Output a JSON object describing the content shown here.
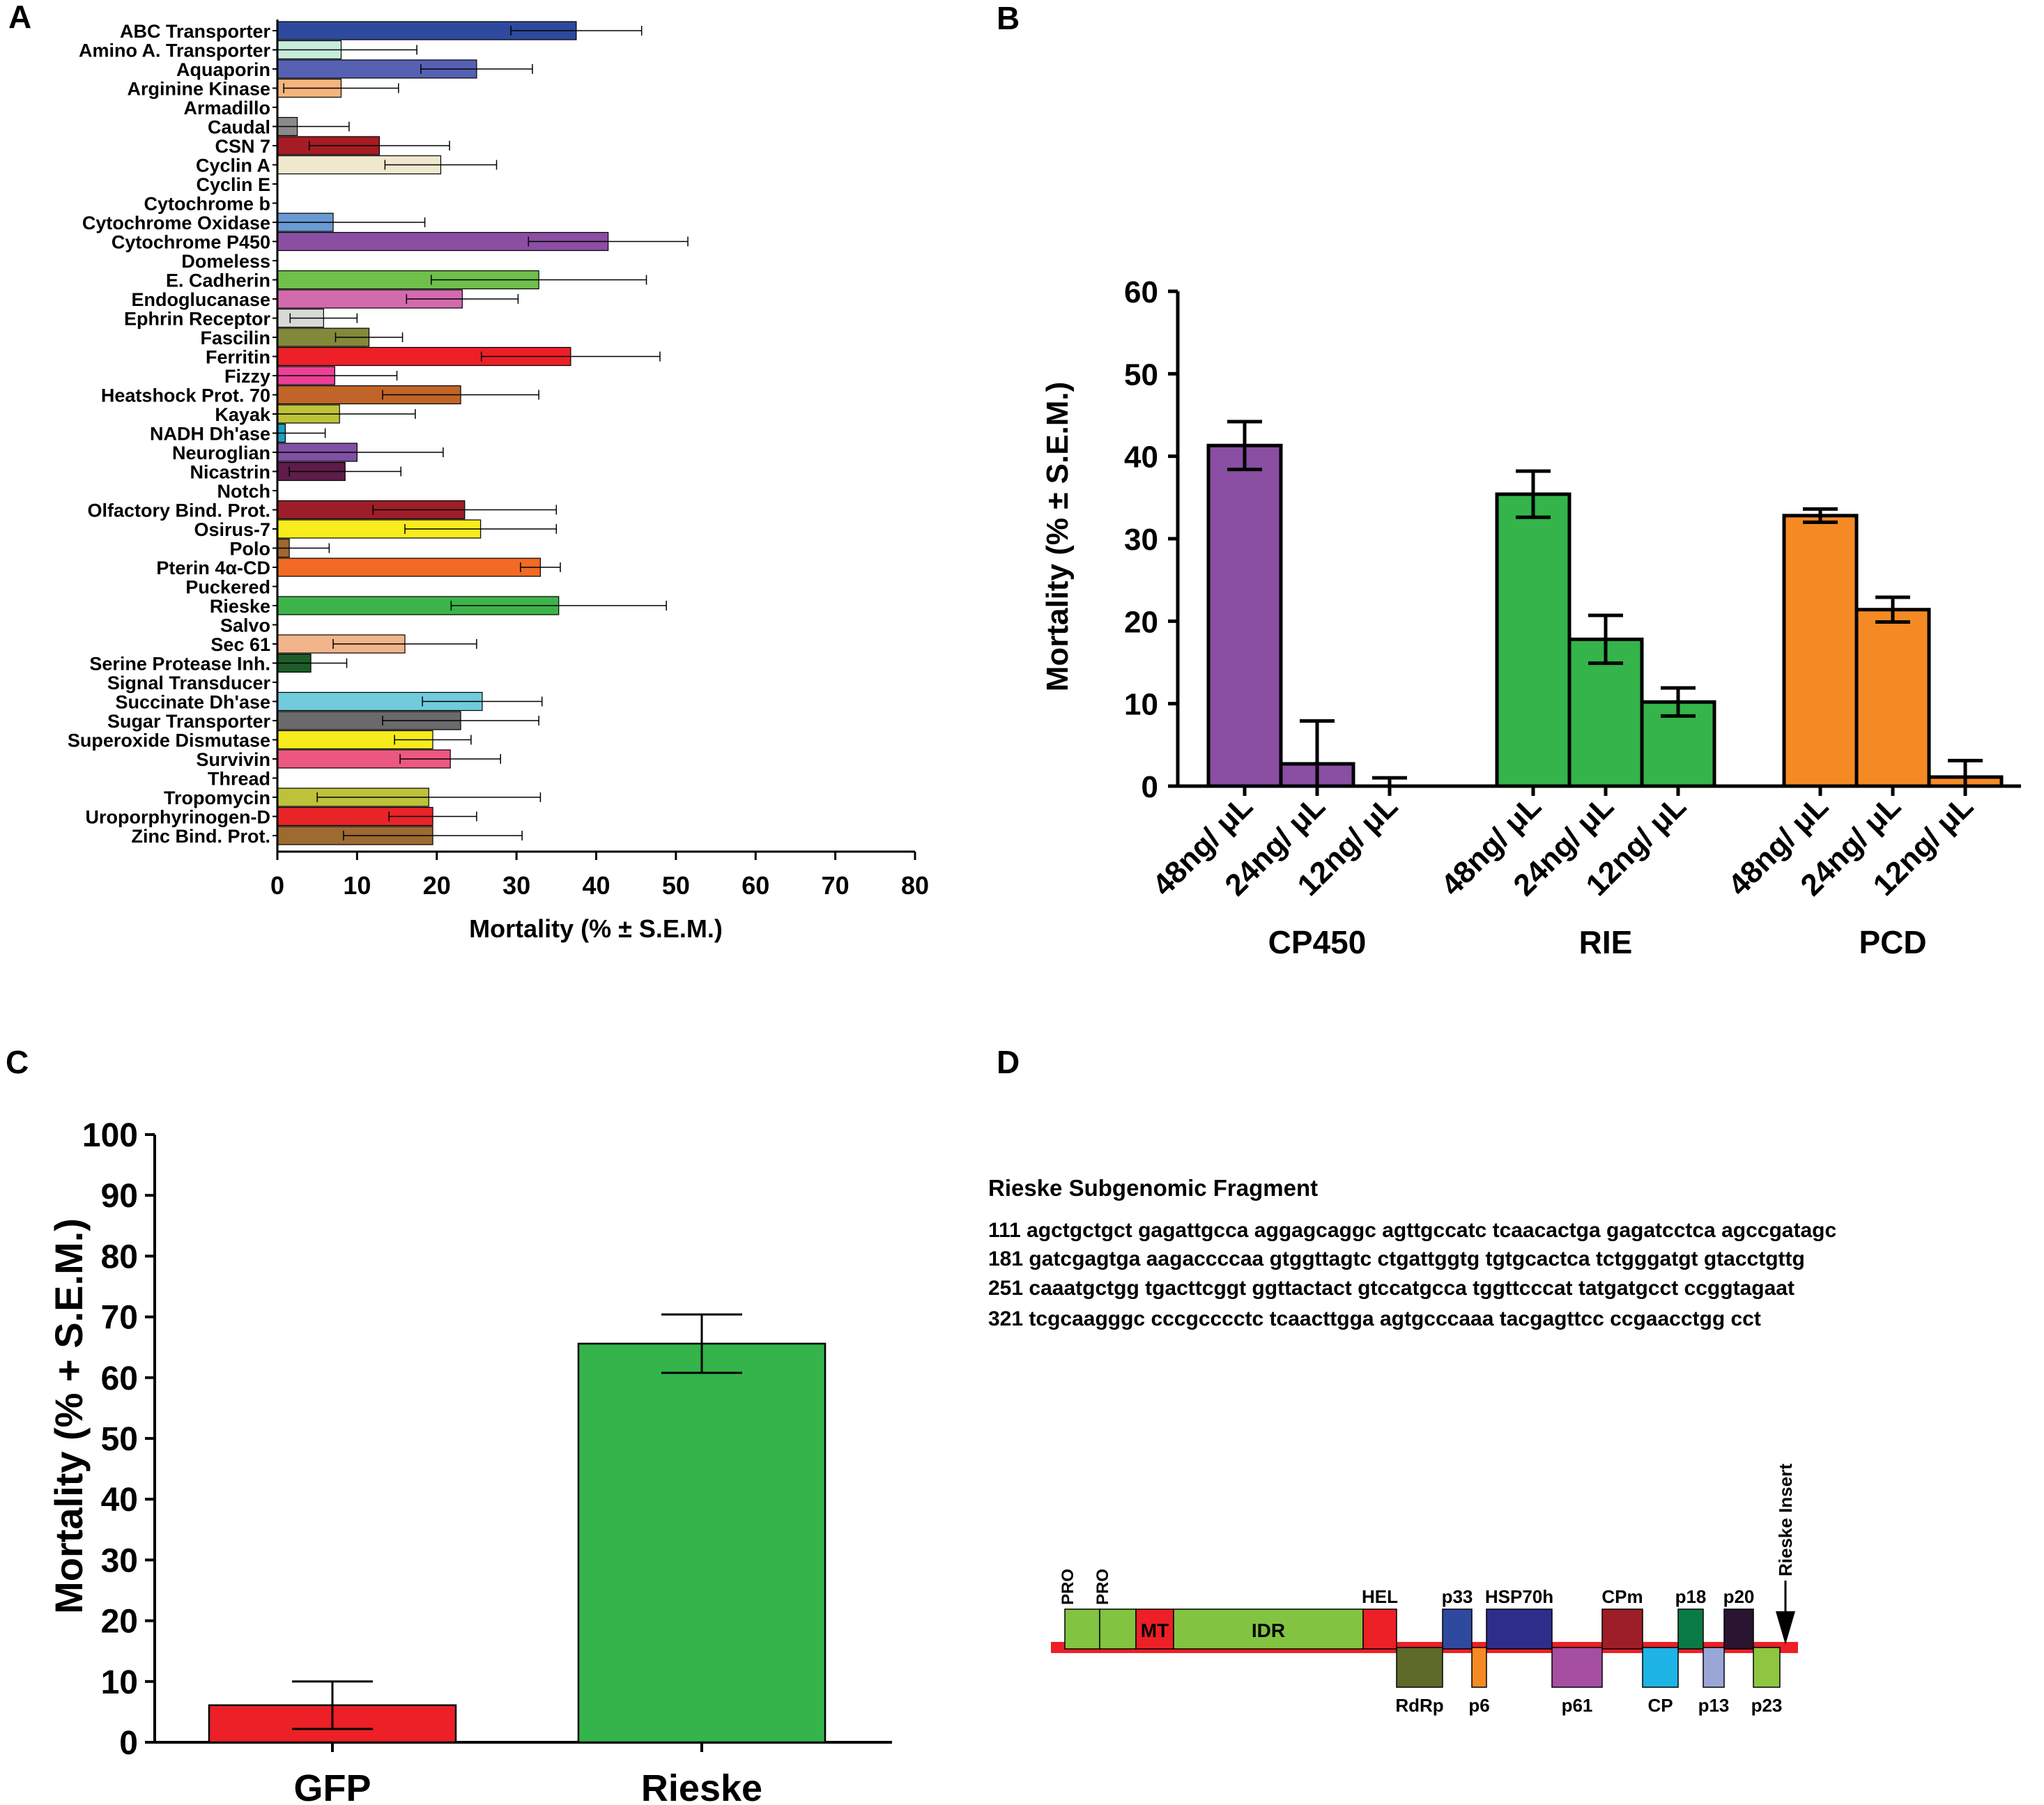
{
  "panels": {
    "A": "A",
    "B": "B",
    "C": "C",
    "D": "D"
  },
  "chart_data": [
    {
      "panel": "A",
      "type": "bar",
      "orientation": "horizontal",
      "xlabel": "Mortality (% ± S.E.M.)",
      "xlim": [
        0,
        80
      ],
      "xticks": [
        0,
        10,
        20,
        30,
        40,
        50,
        60,
        70,
        80
      ],
      "categories": [
        "ABC Transporter",
        "Amino A. Transporter",
        "Aquaporin",
        "Arginine Kinase",
        "Armadillo",
        "Caudal",
        "CSN 7",
        "Cyclin A",
        "Cyclin E",
        "Cytochrome b",
        "Cytochrome Oxidase",
        "Cytochrome P450",
        "Domeless",
        "E. Cadherin",
        "Endoglucanase",
        "Ephrin Receptor",
        "Fascilin",
        "Ferritin",
        "Fizzy",
        "Heatshock Prot. 70",
        "Kayak",
        "NADH Dh'ase",
        "Neuroglian",
        "Nicastrin",
        "Notch",
        "Olfactory Bind. Prot.",
        "Osirus-7",
        "Polo",
        "Pterin 4α-CD",
        "Puckered",
        "Rieske",
        "Salvo",
        "Sec 61",
        "Serine Protease Inh.",
        "Signal Transducer",
        "Succinate Dh'ase",
        "Sugar Transporter",
        "Superoxide Dismutase",
        "Survivin",
        "Thread",
        "Tropomycin",
        "Uroporphyrinogen-D",
        "Zinc Bind. Prot."
      ],
      "values": [
        37.5,
        8,
        25,
        8,
        0,
        2.5,
        12.8,
        20.5,
        0,
        0,
        7,
        41.5,
        0,
        32.8,
        23.2,
        5.8,
        11.5,
        36.8,
        7.2,
        23,
        7.8,
        1,
        10,
        8.5,
        0,
        23.5,
        25.5,
        1.5,
        33,
        0,
        35.3,
        0,
        16,
        4.2,
        0,
        25.7,
        23,
        19.5,
        21.7,
        0,
        19,
        19.5,
        19.5
      ],
      "errors": [
        8.2,
        9.5,
        7,
        7.2,
        0,
        6.5,
        8.8,
        7,
        0,
        0,
        11.5,
        10,
        0,
        13.5,
        7,
        4.2,
        4.2,
        11.2,
        7.8,
        9.8,
        9.5,
        5,
        10.8,
        7,
        0,
        11.5,
        9.5,
        5,
        2.5,
        0,
        13.5,
        0,
        9,
        4.5,
        0,
        7.5,
        9.8,
        4.8,
        6.3,
        0,
        14,
        5.5,
        11.2
      ],
      "colors": [
        "#2e4a9e",
        "#c8ecdc",
        "#5661b4",
        "#f5b47e",
        "#ffffff",
        "#8a8a8a",
        "#a51c24",
        "#efe8cf",
        "#ffffff",
        "#ffffff",
        "#6a9ad4",
        "#8a4ea2",
        "#ffffff",
        "#6ec04a",
        "#d46aae",
        "#d8d8d8",
        "#83893a",
        "#ec2026",
        "#ec4098",
        "#c06428",
        "#bec33a",
        "#1f9fbe",
        "#8050a4",
        "#5e1c4a",
        "#ffffff",
        "#9d1e28",
        "#f8ec1c",
        "#a0672f",
        "#f26a24",
        "#ffffff",
        "#3db44a",
        "#ffffff",
        "#f2b48a",
        "#1e5c2a",
        "#ffffff",
        "#70ccdc",
        "#6a6a6a",
        "#f6eb1c",
        "#ec5880",
        "#ffffff",
        "#bdc23a",
        "#e82428",
        "#9d6a30"
      ]
    },
    {
      "panel": "B",
      "type": "bar",
      "ylabel": "Mortality (% ± S.E.M.)",
      "ylim": [
        0,
        60
      ],
      "yticks": [
        0,
        10,
        20,
        30,
        40,
        50,
        60
      ],
      "groups": [
        {
          "name": "CP450",
          "color": "#8a4ea2",
          "labels": [
            "48ng/ μL",
            "24ng/ μL",
            "12ng/ μL"
          ],
          "values": [
            41.3,
            2.7,
            0
          ],
          "errors": [
            2.9,
            5.2,
            1
          ]
        },
        {
          "name": "RIE",
          "color": "#34b44a",
          "labels": [
            "48ng/ μL",
            "24ng/ μL",
            "12ng/ μL"
          ],
          "values": [
            35.4,
            17.8,
            10.2
          ],
          "errors": [
            2.8,
            2.9,
            1.7
          ]
        },
        {
          "name": "PCD",
          "color": "#f58a24",
          "labels": [
            "48ng/ μL",
            "24ng/ μL",
            "12ng/ μL"
          ],
          "values": [
            32.8,
            21.4,
            1.1
          ],
          "errors": [
            0.8,
            1.5,
            2
          ]
        }
      ]
    },
    {
      "panel": "C",
      "type": "bar",
      "ylabel": "Mortality (% + S.E.M.)",
      "ylim": [
        0,
        100
      ],
      "yticks": [
        0,
        10,
        20,
        30,
        40,
        50,
        60,
        70,
        80,
        90,
        100
      ],
      "categories": [
        "GFP",
        "Rieske"
      ],
      "values": [
        6.1,
        65.6
      ],
      "errors": [
        3.9,
        4.8
      ],
      "colors": [
        "#ec2026",
        "#34b44a"
      ]
    }
  ],
  "panel_d": {
    "title": "Rieske Subgenomic Fragment",
    "sequence": [
      "111 agctgctgct gagattgcca aggagcaggc agttgccatc tcaacactga gagatcctca agccgatagc",
      "181 gatcgagtga aagaccccaa gtggttagtc ctgattggtg tgtgcactca tctgggatgt gtacctgttg",
      "251 caaatgctgg tgacttcggt ggttactact gtccatgcca tggttcccat tatgatgcct ccggtagaat",
      "321 tcgcaagggc cccgcccctc tcaacttgga agtgcccaaa tacgagttcc ccgaacctgg cct"
    ],
    "genome_map": {
      "backbone_color": "#ec2026",
      "insert_label": "Rieske Insert",
      "upper_blocks": [
        {
          "label": "PRO",
          "label_rot": true,
          "color": "#82c341",
          "text": ""
        },
        {
          "label": "PRO",
          "label_rot": true,
          "color": "#82c341",
          "text": ""
        },
        {
          "label": "",
          "label_rot": false,
          "color": "#ec2026",
          "text": "MT"
        },
        {
          "label": "",
          "label_rot": false,
          "color": "#82c341",
          "text": "IDR"
        },
        {
          "label": "HEL",
          "label_rot": false,
          "color": "#ec2026",
          "text": ""
        },
        {
          "label": "p33",
          "label_rot": false,
          "color": "#2e4a9e",
          "text": ""
        },
        {
          "label": "HSP70h",
          "label_rot": false,
          "color": "#2e2e8a",
          "text": ""
        },
        {
          "label": "CPm",
          "label_rot": false,
          "color": "#9d1e28",
          "text": ""
        },
        {
          "label": "p18",
          "label_rot": false,
          "color": "#0a7a44",
          "text": ""
        },
        {
          "label": "p20",
          "label_rot": false,
          "color": "#2a1430",
          "text": ""
        }
      ],
      "lower_blocks": [
        {
          "label": "RdRp",
          "color": "#5e6a2a"
        },
        {
          "label": "p6",
          "color": "#f58a24"
        },
        {
          "label": "p61",
          "color": "#a64ea2"
        },
        {
          "label": "CP",
          "color": "#1fb4e6"
        },
        {
          "label": "p13",
          "color": "#9aa6d6"
        },
        {
          "label": "p23",
          "color": "#8ec641"
        }
      ]
    }
  }
}
